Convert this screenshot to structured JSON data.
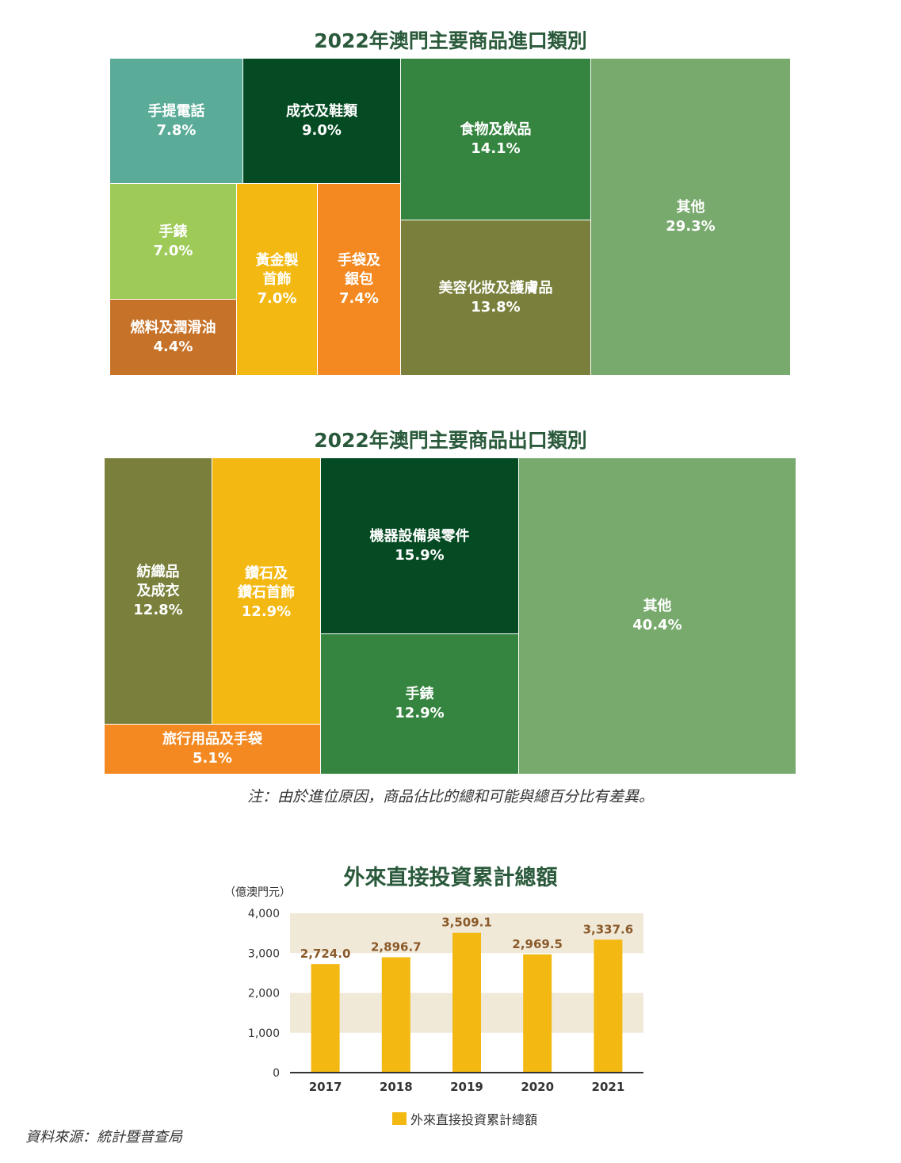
{
  "chart_data": [
    {
      "type": "treemap",
      "title": "2022年澳門主要商品進口類別",
      "items": [
        {
          "label": "手提電話",
          "value": 7.8,
          "value_label": "7.8%",
          "color": "#5aab98"
        },
        {
          "label": "成衣及鞋類",
          "value": 9.0,
          "value_label": "9.0%",
          "color": "#044a22"
        },
        {
          "label": "食物及飲品",
          "value": 14.1,
          "value_label": "14.1%",
          "color": "#358540"
        },
        {
          "label": "其他",
          "value": 29.3,
          "value_label": "29.3%",
          "color": "#78a96d"
        },
        {
          "label": "手錶",
          "value": 7.0,
          "value_label": "7.0%",
          "color": "#9ecb58"
        },
        {
          "label": "黃金製\n首飾",
          "value": 7.0,
          "value_label": "7.0%",
          "color": "#f3b811"
        },
        {
          "label": "手袋及\n銀包",
          "value": 7.4,
          "value_label": "7.4%",
          "color": "#f38920"
        },
        {
          "label": "美容化妝及護膚品",
          "value": 13.8,
          "value_label": "13.8%",
          "color": "#7a803c"
        },
        {
          "label": "燃料及潤滑油",
          "value": 4.4,
          "value_label": "4.4%",
          "color": "#c77229"
        }
      ]
    },
    {
      "type": "treemap",
      "title": "2022年澳門主要商品出口類別",
      "items": [
        {
          "label": "紡織品\n及成衣",
          "value": 12.8,
          "value_label": "12.8%",
          "color": "#7a803c"
        },
        {
          "label": "鑽石及\n鑽石首飾",
          "value": 12.9,
          "value_label": "12.9%",
          "color": "#f3b811"
        },
        {
          "label": "機器設備與零件",
          "value": 15.9,
          "value_label": "15.9%",
          "color": "#044a22"
        },
        {
          "label": "其他",
          "value": 40.4,
          "value_label": "40.4%",
          "color": "#78a96d"
        },
        {
          "label": "手錶",
          "value": 12.9,
          "value_label": "12.9%",
          "color": "#358540"
        },
        {
          "label": "旅行用品及手袋",
          "value": 5.1,
          "value_label": "5.1%",
          "color": "#f38920"
        }
      ]
    },
    {
      "type": "bar",
      "title": "外來直接投資累計總額",
      "ylabel": "（億澳門元）",
      "categories": [
        "2017",
        "2018",
        "2019",
        "2020",
        "2021"
      ],
      "series": [
        {
          "name": "外來直接投資累計總額",
          "values": [
            2724.0,
            2896.7,
            3509.1,
            2969.5,
            3337.6
          ],
          "color": "#f3b811"
        }
      ],
      "value_labels": [
        "2,724.0",
        "2,896.7",
        "3,509.1",
        "2,969.5",
        "3,337.6"
      ],
      "yticks": [
        0,
        1000,
        2000,
        3000,
        4000
      ],
      "ytick_labels": [
        "0",
        "1,000",
        "2,000",
        "3,000",
        "4,000"
      ],
      "ylim": [
        0,
        4000
      ],
      "value_label_color": "#8a5a2a",
      "band_color": "#f1e9d8",
      "legend": "bottom-center"
    }
  ],
  "note": "注：由於進位原因，商品佔比的總和可能與總百分比有差異。",
  "source": "資料來源：統計暨普查局"
}
